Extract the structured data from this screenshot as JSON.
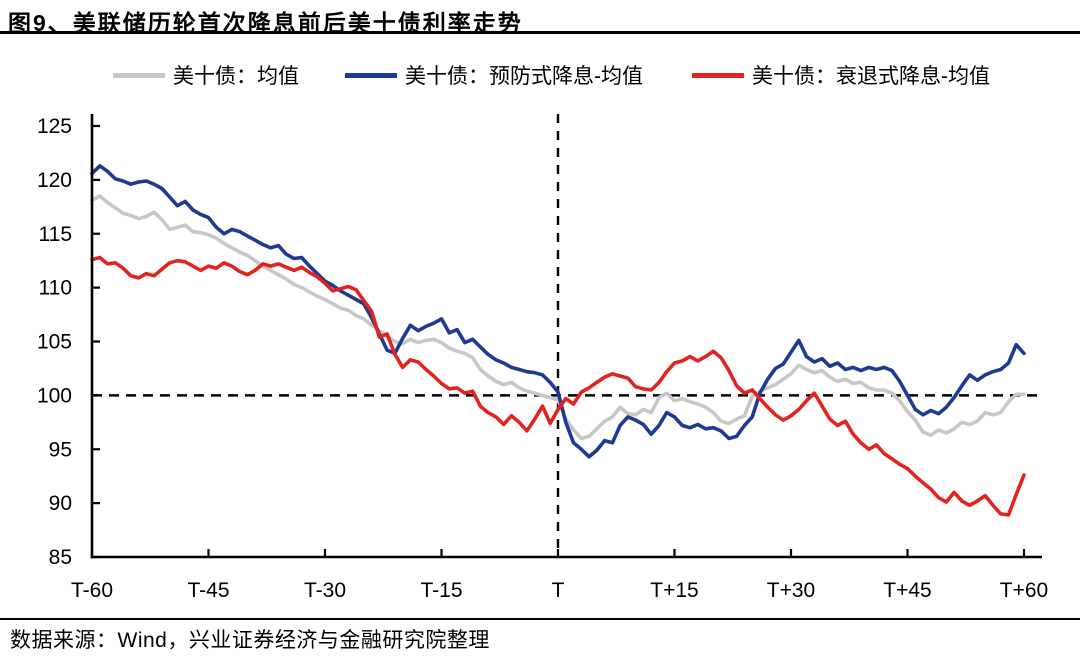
{
  "title": "图9、美联储历轮首次降息前后美十债利率走势",
  "source_note": "数据来源：Wind，兴业证券经济与金融研究院整理",
  "colors": {
    "background": "#ffffff",
    "axis": "#000000",
    "reference_dash": "#000000",
    "mean": "#c7c7c7",
    "preventive": "#1f3a93",
    "recession": "#e22420"
  },
  "chart_data": {
    "type": "line",
    "title": "图9、美联储历轮首次降息前后美十债利率走势",
    "legend_position": "top",
    "grid": false,
    "x_axis": {
      "range": [
        -60,
        60
      ],
      "tick_values": [
        -60,
        -45,
        -30,
        -15,
        0,
        15,
        30,
        45,
        60
      ],
      "tick_labels": [
        "T-60",
        "T-45",
        "T-30",
        "T-15",
        "T",
        "T+15",
        "T+30",
        "T+45",
        "T+60"
      ]
    },
    "y_axis": {
      "range": [
        85,
        125
      ],
      "tick_values": [
        85,
        90,
        95,
        100,
        105,
        110,
        115,
        120,
        125
      ],
      "tick_labels": [
        "85",
        "90",
        "95",
        "100",
        "105",
        "110",
        "115",
        "120",
        "125"
      ]
    },
    "reference_lines": {
      "horizontal_value": 100,
      "vertical_x": 0,
      "style": "dashed",
      "color": "#000000"
    },
    "x_start": -60,
    "x_step": 1,
    "series": [
      {
        "name": "美十债：均值",
        "color": "#c7c7c7",
        "values": [
          118.1,
          118.5,
          117.9,
          117.4,
          116.9,
          116.7,
          116.4,
          116.6,
          117.0,
          116.3,
          115.4,
          115.6,
          115.8,
          115.2,
          115.1,
          114.9,
          114.6,
          114.1,
          113.7,
          113.3,
          113.0,
          112.5,
          112.0,
          111.6,
          111.2,
          110.8,
          110.3,
          110.0,
          109.6,
          109.2,
          108.9,
          108.5,
          108.1,
          107.9,
          107.4,
          107.1,
          106.5,
          106.0,
          105.5,
          105.0,
          104.8,
          105.2,
          104.9,
          105.1,
          105.2,
          104.9,
          104.4,
          104.1,
          103.9,
          103.5,
          102.4,
          101.8,
          101.3,
          101.0,
          101.2,
          100.7,
          100.4,
          100.2,
          100.0,
          99.8,
          99.6,
          97.8,
          96.8,
          96.0,
          96.2,
          96.9,
          97.6,
          98.0,
          98.9,
          98.3,
          98.2,
          98.7,
          98.4,
          99.8,
          100.2,
          99.5,
          99.7,
          99.4,
          99.2,
          98.9,
          98.4,
          97.6,
          97.4,
          97.8,
          98.1,
          99.9,
          100.4,
          100.7,
          101.0,
          101.5,
          102.0,
          102.8,
          102.4,
          102.1,
          102.3,
          101.7,
          101.3,
          101.5,
          101.1,
          101.2,
          100.7,
          100.5,
          100.5,
          100.2,
          99.5,
          98.5,
          97.7,
          96.6,
          96.3,
          96.8,
          96.5,
          96.9,
          97.5,
          97.3,
          97.6,
          98.4,
          98.2,
          98.4,
          99.4,
          100.1,
          100.1
        ]
      },
      {
        "name": "美十债：预防式降息-均值",
        "color": "#1f3a93",
        "values": [
          120.6,
          121.3,
          120.8,
          120.1,
          119.9,
          119.6,
          119.8,
          119.9,
          119.6,
          119.2,
          118.4,
          117.6,
          118.0,
          117.2,
          116.8,
          116.5,
          115.6,
          115.0,
          115.4,
          115.2,
          114.8,
          114.4,
          114.0,
          113.7,
          113.9,
          113.1,
          112.7,
          112.8,
          112.0,
          111.3,
          110.6,
          110.2,
          109.7,
          109.3,
          108.9,
          108.5,
          107.2,
          105.7,
          104.2,
          103.9,
          105.3,
          106.5,
          106.0,
          106.4,
          106.7,
          107.1,
          105.8,
          106.1,
          104.9,
          105.2,
          104.5,
          103.8,
          103.3,
          103.0,
          102.6,
          102.4,
          102.2,
          102.1,
          101.9,
          101.2,
          100.3,
          97.5,
          95.6,
          95.0,
          94.3,
          94.9,
          95.8,
          95.6,
          97.2,
          98.0,
          97.7,
          97.3,
          96.4,
          97.2,
          98.4,
          98.0,
          97.2,
          97.0,
          97.3,
          96.9,
          97.0,
          96.7,
          96.0,
          96.2,
          97.2,
          98.0,
          100.2,
          101.5,
          102.5,
          102.9,
          104.0,
          105.1,
          103.6,
          103.1,
          103.4,
          102.7,
          103.0,
          102.4,
          102.6,
          102.3,
          102.6,
          102.4,
          102.6,
          102.3,
          101.3,
          100.0,
          98.7,
          98.2,
          98.6,
          98.3,
          98.9,
          99.8,
          100.9,
          101.9,
          101.4,
          101.9,
          102.2,
          102.4,
          103.0,
          104.7,
          103.9
        ]
      },
      {
        "name": "美十债：衰退式降息-均值",
        "color": "#e22420",
        "values": [
          112.6,
          112.8,
          112.2,
          112.3,
          111.8,
          111.1,
          110.9,
          111.3,
          111.1,
          111.7,
          112.3,
          112.5,
          112.4,
          112.0,
          111.6,
          112.0,
          111.8,
          112.3,
          112.0,
          111.5,
          111.2,
          111.6,
          112.2,
          112.0,
          112.2,
          111.9,
          111.6,
          111.9,
          111.4,
          111.0,
          110.4,
          109.7,
          109.9,
          110.1,
          109.8,
          108.8,
          107.8,
          105.4,
          105.7,
          103.8,
          102.6,
          103.3,
          103.1,
          102.4,
          101.8,
          101.1,
          100.6,
          100.7,
          100.2,
          100.4,
          99.0,
          98.4,
          98.0,
          97.3,
          98.1,
          97.5,
          96.7,
          97.8,
          99.0,
          97.4,
          98.7,
          99.7,
          99.2,
          100.3,
          100.7,
          101.2,
          101.7,
          102.0,
          101.8,
          101.6,
          100.8,
          100.6,
          100.5,
          101.2,
          102.2,
          103.0,
          103.2,
          103.6,
          103.2,
          103.6,
          104.1,
          103.5,
          102.3,
          100.9,
          100.2,
          100.5,
          99.7,
          98.9,
          98.2,
          97.7,
          98.1,
          98.7,
          99.5,
          100.2,
          99.0,
          97.8,
          97.2,
          97.6,
          96.4,
          95.6,
          95.0,
          95.4,
          94.6,
          94.1,
          93.6,
          93.2,
          92.5,
          91.9,
          91.3,
          90.5,
          90.1,
          91.0,
          90.2,
          89.8,
          90.2,
          90.7,
          89.8,
          89.0,
          88.9,
          90.8,
          92.6
        ]
      }
    ]
  }
}
